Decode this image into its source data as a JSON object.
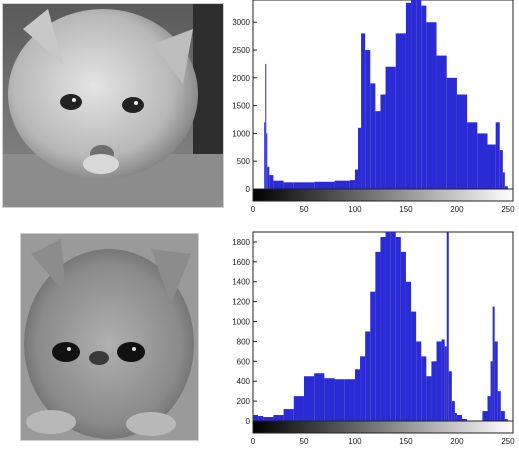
{
  "images": [
    {
      "subject": "white fluffy kitten, grayscale photo"
    },
    {
      "subject": "persian kitten, grayscale photo"
    }
  ],
  "chart_data": [
    {
      "type": "bar",
      "x_range": [
        0,
        255
      ],
      "ylim": [
        0,
        3400
      ],
      "xticks": [
        "0",
        "50",
        "100",
        "150",
        "200",
        "250"
      ],
      "yticks": [
        "0",
        "500",
        "1000",
        "1500",
        "2000",
        "2500",
        "3000"
      ],
      "bar_color": "#2b2bd6",
      "colorbar": "grayscale gradient 0-255",
      "bins": [
        0,
        9,
        11,
        12,
        13,
        14,
        16,
        20,
        30,
        40,
        60,
        80,
        95,
        100,
        103,
        106,
        110,
        115,
        120,
        125,
        130,
        140,
        150,
        155,
        160,
        165,
        170,
        180,
        190,
        200,
        210,
        220,
        230,
        238,
        242,
        245,
        247,
        250
      ],
      "values": [
        0,
        0,
        1200,
        2250,
        1000,
        400,
        250,
        150,
        120,
        120,
        130,
        150,
        160,
        350,
        1100,
        2800,
        2500,
        1900,
        1400,
        1700,
        2200,
        2800,
        3350,
        3400,
        3400,
        3300,
        3000,
        2400,
        2000,
        1700,
        1200,
        1000,
        800,
        1200,
        700,
        300,
        50,
        0
      ]
    },
    {
      "type": "bar",
      "x_range": [
        0,
        255
      ],
      "ylim": [
        0,
        1900
      ],
      "xticks": [
        "0",
        "50",
        "100",
        "150",
        "200",
        "250"
      ],
      "yticks": [
        "0",
        "200",
        "400",
        "600",
        "800",
        "1000",
        "1200",
        "1400",
        "1600",
        "1800"
      ],
      "bar_color": "#2b2bd6",
      "colorbar": "grayscale gradient 0-255",
      "bins": [
        0,
        5,
        10,
        20,
        30,
        40,
        50,
        60,
        70,
        80,
        90,
        100,
        105,
        110,
        115,
        120,
        125,
        130,
        135,
        140,
        145,
        150,
        155,
        160,
        165,
        170,
        175,
        180,
        185,
        188,
        190,
        192,
        195,
        198,
        200,
        205,
        210,
        220,
        225,
        230,
        233,
        235,
        237,
        240,
        243,
        247,
        250
      ],
      "values": [
        60,
        50,
        40,
        60,
        120,
        250,
        450,
        480,
        430,
        420,
        420,
        520,
        650,
        900,
        1300,
        1700,
        1850,
        1900,
        1900,
        1850,
        1700,
        1400,
        1100,
        800,
        650,
        450,
        600,
        800,
        820,
        750,
        1900,
        500,
        200,
        80,
        60,
        20,
        0,
        0,
        100,
        250,
        600,
        1150,
        800,
        300,
        100,
        20,
        0
      ]
    }
  ]
}
